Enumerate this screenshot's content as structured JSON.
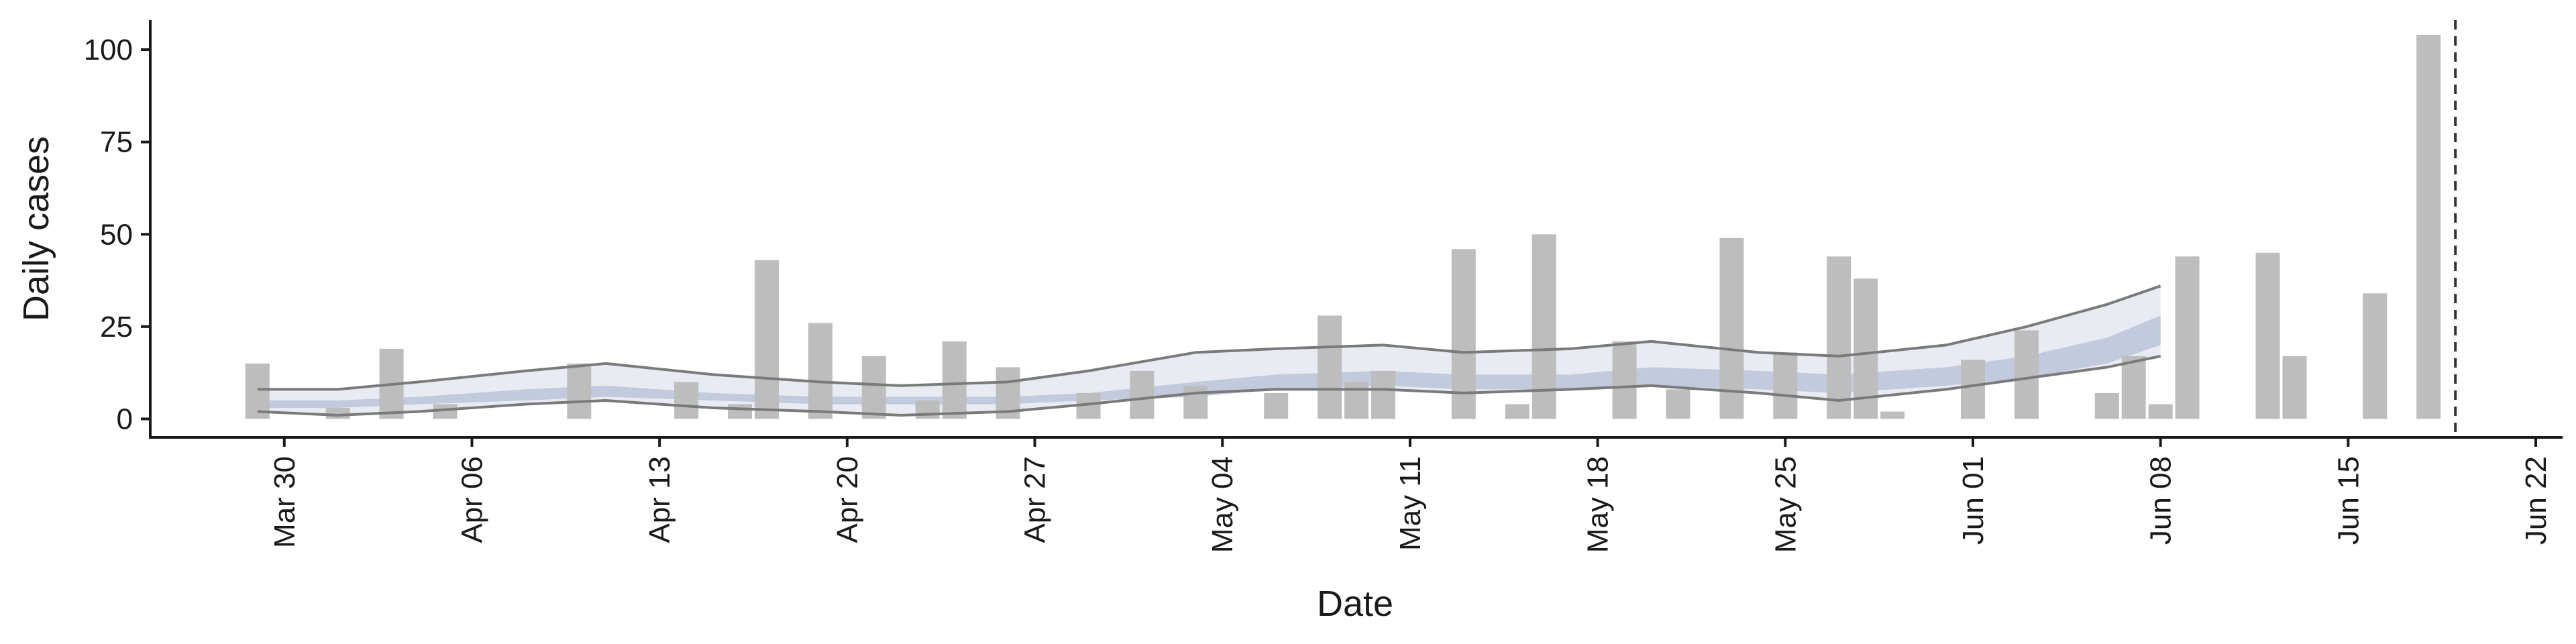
{
  "chart_data": {
    "type": "bar",
    "title": "",
    "xlabel": "Date",
    "ylabel": "Daily cases",
    "x_range": [
      "2020-03-25",
      "2020-06-23"
    ],
    "ylim": [
      -5,
      108
    ],
    "y_ticks": [
      0,
      25,
      50,
      75,
      100
    ],
    "y_tick_labels": [
      "0",
      "25",
      "50",
      "75",
      "100"
    ],
    "x_ticks": [
      "2020-03-30",
      "2020-04-06",
      "2020-04-13",
      "2020-04-20",
      "2020-04-27",
      "2020-05-04",
      "2020-05-11",
      "2020-05-18",
      "2020-05-25",
      "2020-06-01",
      "2020-06-08",
      "2020-06-15",
      "2020-06-22"
    ],
    "x_tick_labels": [
      "Mar 30",
      "Apr 06",
      "Apr 13",
      "Apr 20",
      "Apr 27",
      "May 04",
      "May 11",
      "May 18",
      "May 25",
      "Jun 01",
      "Jun 08",
      "Jun 15",
      "Jun 22"
    ],
    "grid": false,
    "legend": "none",
    "vline_date": "2020-06-19",
    "colors": {
      "bars": "#bdbdbd",
      "band_outer": "#e9ebf2",
      "band_inner": "#c3cadd",
      "bound_lines": "#7a7a7a",
      "vline": "#333333"
    },
    "bars": [
      {
        "date": "2020-03-29",
        "value": 15
      },
      {
        "date": "2020-04-01",
        "value": 3
      },
      {
        "date": "2020-04-03",
        "value": 19
      },
      {
        "date": "2020-04-05",
        "value": 4
      },
      {
        "date": "2020-04-10",
        "value": 15
      },
      {
        "date": "2020-04-14",
        "value": 10
      },
      {
        "date": "2020-04-16",
        "value": 4
      },
      {
        "date": "2020-04-17",
        "value": 43
      },
      {
        "date": "2020-04-19",
        "value": 26
      },
      {
        "date": "2020-04-21",
        "value": 17
      },
      {
        "date": "2020-04-23",
        "value": 5
      },
      {
        "date": "2020-04-24",
        "value": 21
      },
      {
        "date": "2020-04-26",
        "value": 14
      },
      {
        "date": "2020-04-29",
        "value": 7
      },
      {
        "date": "2020-05-01",
        "value": 13
      },
      {
        "date": "2020-05-03",
        "value": 9
      },
      {
        "date": "2020-05-06",
        "value": 7
      },
      {
        "date": "2020-05-08",
        "value": 28
      },
      {
        "date": "2020-05-09",
        "value": 10
      },
      {
        "date": "2020-05-10",
        "value": 13
      },
      {
        "date": "2020-05-13",
        "value": 46
      },
      {
        "date": "2020-05-15",
        "value": 4
      },
      {
        "date": "2020-05-16",
        "value": 50
      },
      {
        "date": "2020-05-19",
        "value": 21
      },
      {
        "date": "2020-05-21",
        "value": 8
      },
      {
        "date": "2020-05-23",
        "value": 49
      },
      {
        "date": "2020-05-25",
        "value": 18
      },
      {
        "date": "2020-05-27",
        "value": 44
      },
      {
        "date": "2020-05-28",
        "value": 38
      },
      {
        "date": "2020-05-29",
        "value": 2
      },
      {
        "date": "2020-06-01",
        "value": 16
      },
      {
        "date": "2020-06-03",
        "value": 24
      },
      {
        "date": "2020-06-06",
        "value": 7
      },
      {
        "date": "2020-06-07",
        "value": 17
      },
      {
        "date": "2020-06-08",
        "value": 4
      },
      {
        "date": "2020-06-09",
        "value": 44
      },
      {
        "date": "2020-06-12",
        "value": 45
      },
      {
        "date": "2020-06-13",
        "value": 17
      },
      {
        "date": "2020-06-16",
        "value": 34
      },
      {
        "date": "2020-06-18",
        "value": 104
      }
    ],
    "estimate_bands": {
      "dates": [
        "2020-03-29",
        "2020-04-01",
        "2020-04-04",
        "2020-04-08",
        "2020-04-11",
        "2020-04-15",
        "2020-04-19",
        "2020-04-22",
        "2020-04-26",
        "2020-04-29",
        "2020-05-03",
        "2020-05-06",
        "2020-05-10",
        "2020-05-13",
        "2020-05-17",
        "2020-05-20",
        "2020-05-24",
        "2020-05-27",
        "2020-05-31",
        "2020-06-03",
        "2020-06-06",
        "2020-06-08"
      ],
      "upper_90": [
        8,
        8,
        10,
        13,
        15,
        12,
        10,
        9,
        10,
        13,
        18,
        19,
        20,
        18,
        19,
        21,
        18,
        17,
        20,
        25,
        31,
        36
      ],
      "upper_50": [
        5,
        5,
        6,
        8,
        9,
        7,
        6,
        6,
        6,
        7,
        10,
        12,
        13,
        12,
        12,
        14,
        13,
        12,
        14,
        17,
        22,
        28
      ],
      "lower_50": [
        3,
        3,
        4,
        5,
        6,
        5,
        4,
        4,
        4,
        5,
        6,
        8,
        9,
        8,
        8,
        9,
        8,
        7,
        9,
        11,
        15,
        20
      ],
      "lower_90": [
        2,
        1,
        2,
        4,
        5,
        3,
        2,
        1,
        2,
        4,
        7,
        8,
        8,
        7,
        8,
        9,
        7,
        5,
        8,
        11,
        14,
        17
      ]
    },
    "bound_lines": {
      "dates": [
        "2020-03-29",
        "2020-04-01",
        "2020-04-04",
        "2020-04-08",
        "2020-04-11",
        "2020-04-15",
        "2020-04-19",
        "2020-04-22",
        "2020-04-26",
        "2020-04-29",
        "2020-05-03",
        "2020-05-06",
        "2020-05-10",
        "2020-05-13",
        "2020-05-17",
        "2020-05-20",
        "2020-05-24",
        "2020-05-27",
        "2020-05-31",
        "2020-06-03",
        "2020-06-06",
        "2020-06-08"
      ],
      "upper": [
        8,
        8,
        10,
        13,
        15,
        12,
        10,
        9,
        10,
        13,
        18,
        19,
        20,
        18,
        19,
        21,
        18,
        17,
        20,
        25,
        31,
        36
      ],
      "lower": [
        2,
        1,
        2,
        4,
        5,
        3,
        2,
        1,
        2,
        4,
        7,
        8,
        8,
        7,
        8,
        9,
        7,
        5,
        8,
        11,
        14,
        17
      ]
    }
  }
}
